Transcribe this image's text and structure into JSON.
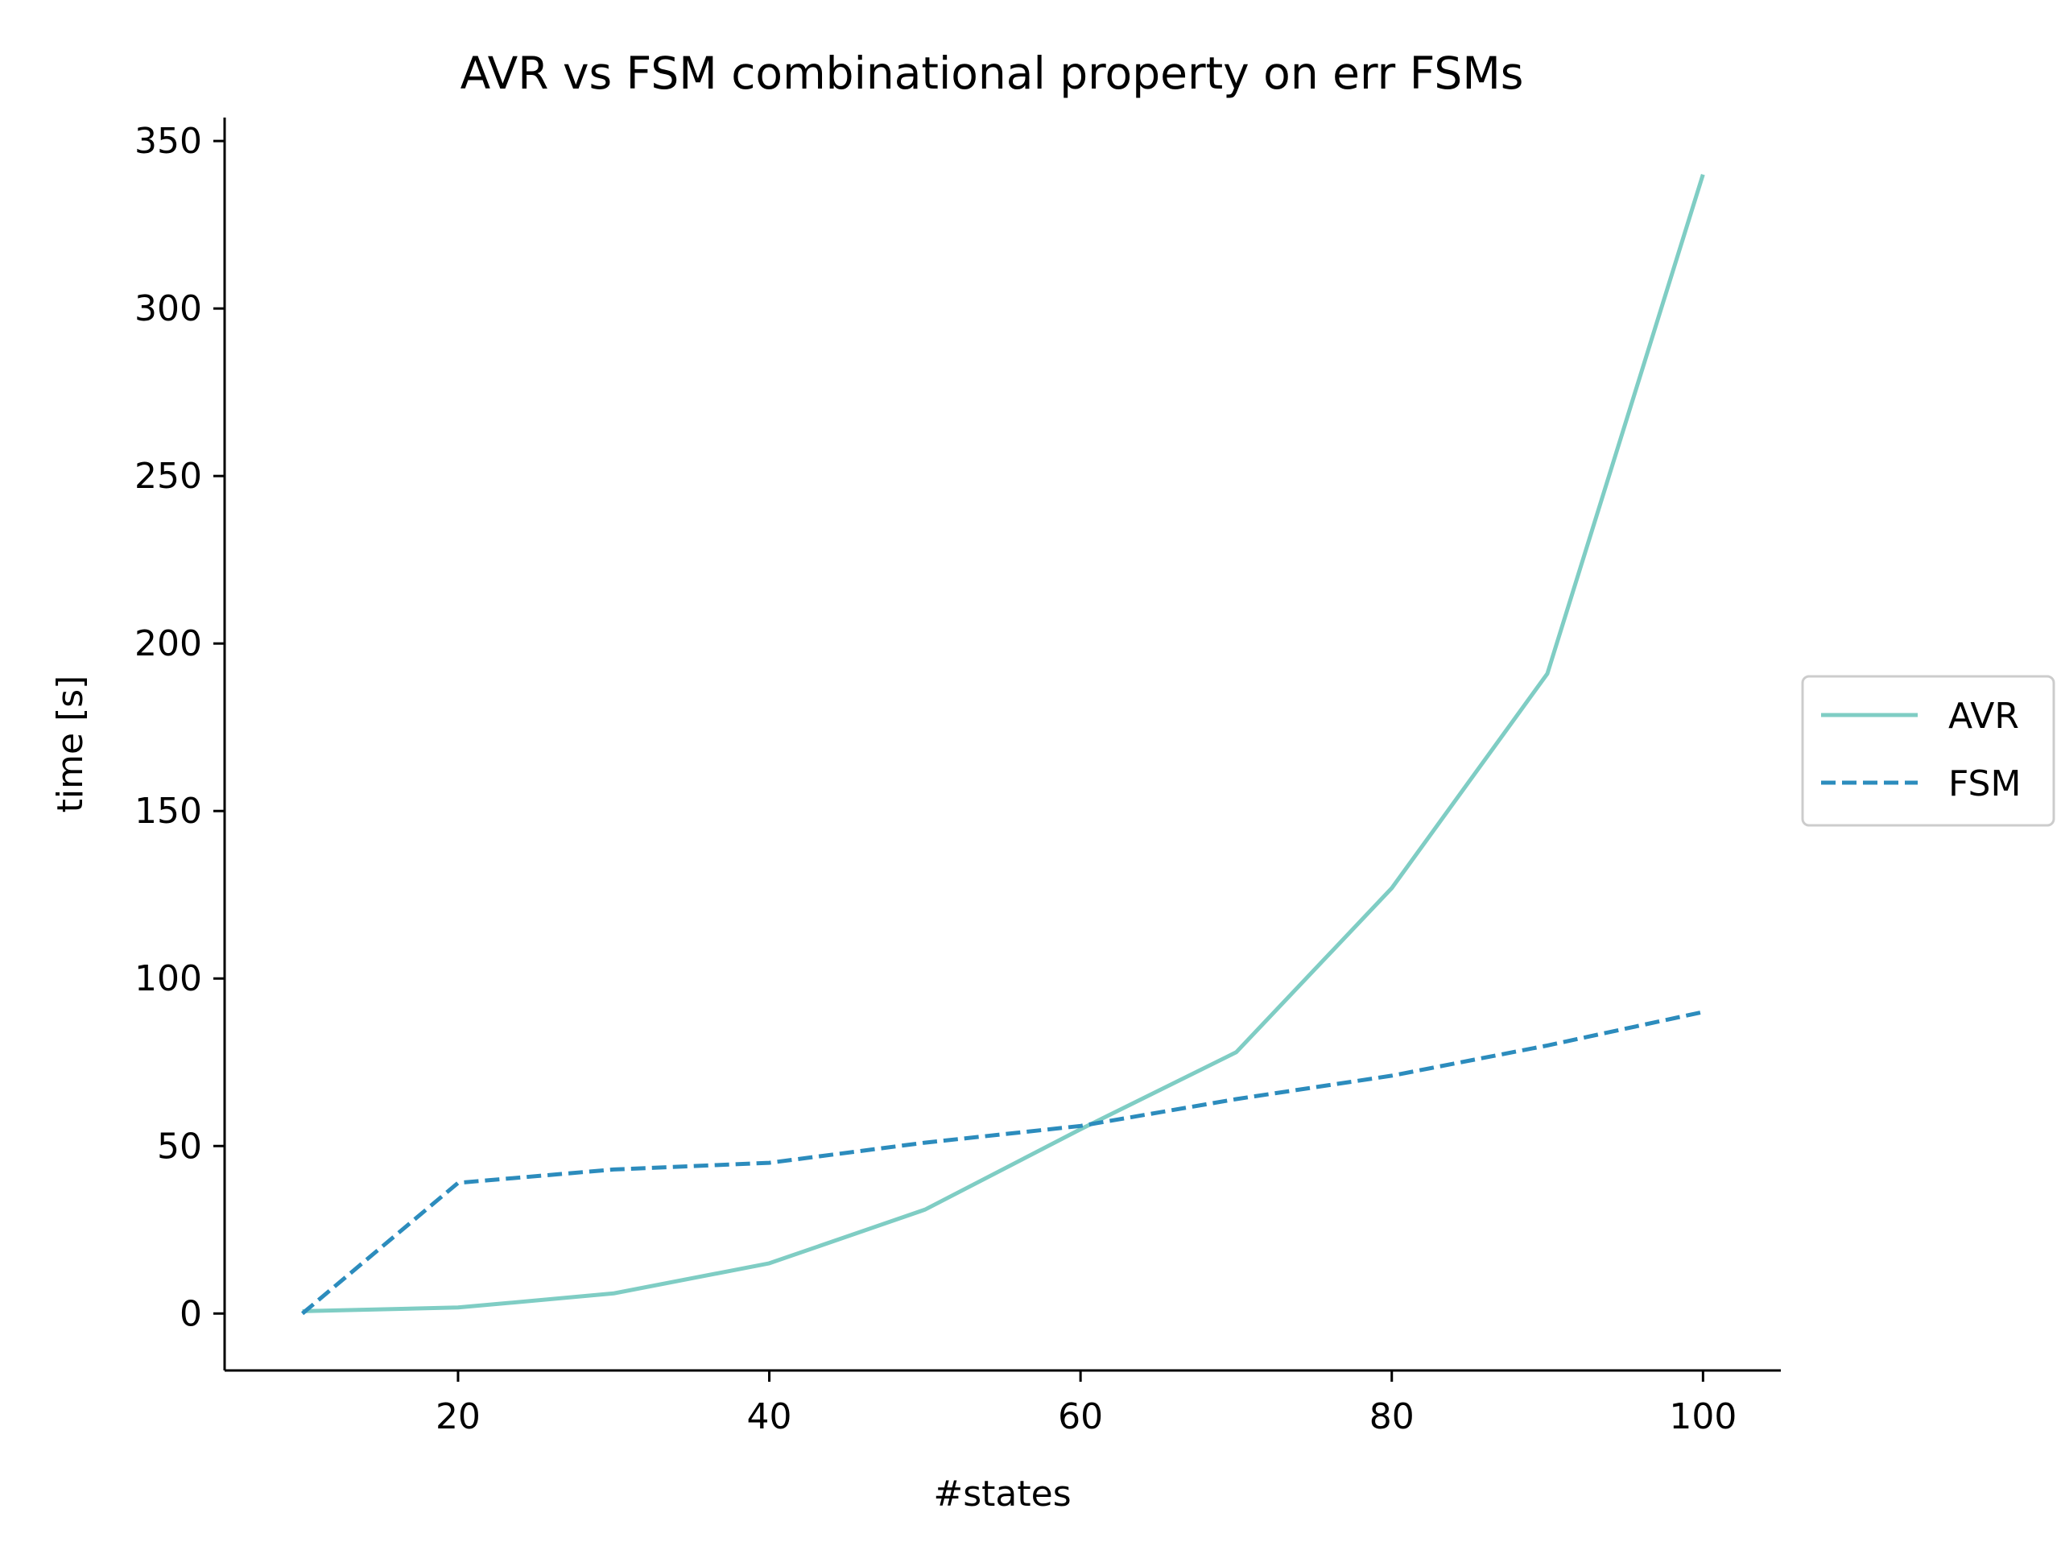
{
  "chart_data": {
    "type": "line",
    "title": "AVR vs FSM combinational property on err FSMs",
    "xlabel": "#states",
    "ylabel": "time [s]",
    "x": [
      10,
      20,
      30,
      40,
      50,
      60,
      70,
      80,
      90,
      100
    ],
    "xlim": [
      5,
      105
    ],
    "ylim": [
      -17,
      357
    ],
    "xticks": [
      20,
      40,
      60,
      80,
      100
    ],
    "yticks": [
      0,
      50,
      100,
      150,
      200,
      250,
      300,
      350
    ],
    "grid": false,
    "legend_position": "center-right-outside",
    "series": [
      {
        "name": "AVR",
        "color": "#7fcdc4",
        "style": "solid",
        "values": [
          0.7,
          1.8,
          6,
          15,
          31,
          55,
          78,
          127,
          191,
          340
        ]
      },
      {
        "name": "FSM",
        "color": "#2c8cbd",
        "style": "dashed",
        "values": [
          0,
          39,
          43,
          45,
          51,
          56,
          64,
          71,
          80,
          90
        ]
      }
    ]
  }
}
